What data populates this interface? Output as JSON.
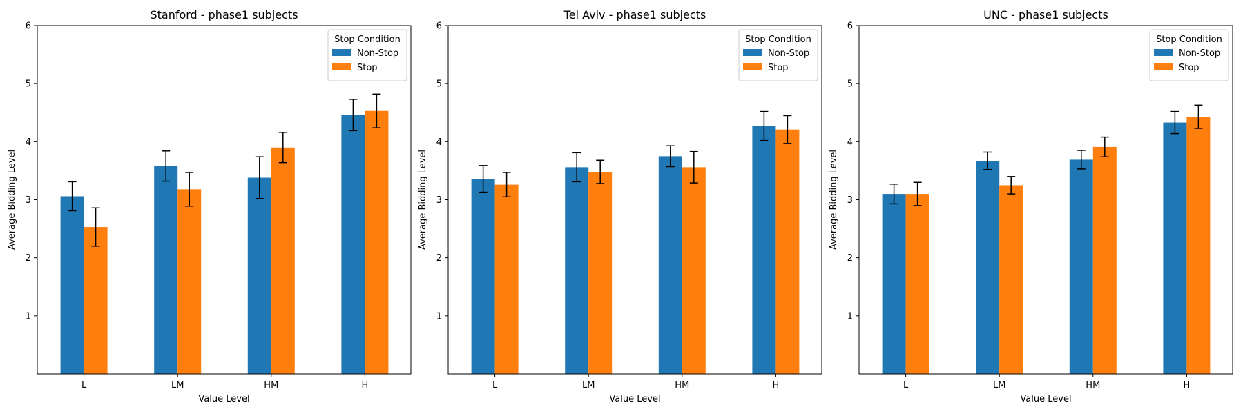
{
  "chart_data": [
    {
      "type": "bar",
      "title": "Stanford - phase1 subjects",
      "xlabel": "Value Level",
      "ylabel": "Average Bidding Level",
      "categories": [
        "L",
        "LM",
        "HM",
        "H"
      ],
      "ylim": [
        0,
        6
      ],
      "yticks": [
        1,
        2,
        3,
        4,
        5,
        6
      ],
      "legend": {
        "title": "Stop Condition",
        "position": "top-right"
      },
      "series": [
        {
          "name": "Non-Stop",
          "color": "#1f77b4",
          "values": [
            3.06,
            3.58,
            3.38,
            4.46
          ],
          "errors": [
            0.25,
            0.26,
            0.36,
            0.27
          ]
        },
        {
          "name": "Stop",
          "color": "#ff7f0e",
          "values": [
            2.53,
            3.18,
            3.9,
            4.53
          ],
          "errors": [
            0.33,
            0.29,
            0.26,
            0.29
          ]
        }
      ]
    },
    {
      "type": "bar",
      "title": "Tel Aviv - phase1 subjects",
      "xlabel": "Value Level",
      "ylabel": "Average Bidding Level",
      "categories": [
        "L",
        "LM",
        "HM",
        "H"
      ],
      "ylim": [
        0,
        6
      ],
      "yticks": [
        1,
        2,
        3,
        4,
        5,
        6
      ],
      "legend": {
        "title": "Stop Condition",
        "position": "top-right"
      },
      "series": [
        {
          "name": "Non-Stop",
          "color": "#1f77b4",
          "values": [
            3.36,
            3.56,
            3.75,
            4.27
          ],
          "errors": [
            0.23,
            0.25,
            0.18,
            0.25
          ]
        },
        {
          "name": "Stop",
          "color": "#ff7f0e",
          "values": [
            3.26,
            3.48,
            3.56,
            4.21
          ],
          "errors": [
            0.21,
            0.2,
            0.27,
            0.24
          ]
        }
      ]
    },
    {
      "type": "bar",
      "title": "UNC - phase1 subjects",
      "xlabel": "Value Level",
      "ylabel": "Average Bidding Level",
      "categories": [
        "L",
        "LM",
        "HM",
        "H"
      ],
      "ylim": [
        0,
        6
      ],
      "yticks": [
        1,
        2,
        3,
        4,
        5,
        6
      ],
      "legend": {
        "title": "Stop Condition",
        "position": "top-right"
      },
      "series": [
        {
          "name": "Non-Stop",
          "color": "#1f77b4",
          "values": [
            3.1,
            3.67,
            3.69,
            4.33
          ],
          "errors": [
            0.17,
            0.15,
            0.16,
            0.19
          ]
        },
        {
          "name": "Stop",
          "color": "#ff7f0e",
          "values": [
            3.1,
            3.25,
            3.91,
            4.43
          ],
          "errors": [
            0.2,
            0.15,
            0.17,
            0.2
          ]
        }
      ]
    }
  ]
}
